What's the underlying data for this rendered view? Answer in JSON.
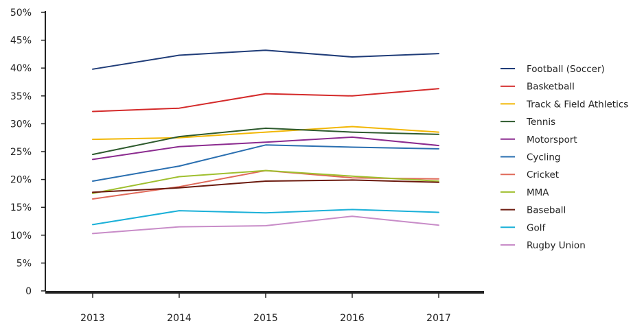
{
  "chart_data": {
    "type": "line",
    "title": "",
    "xlabel": "",
    "ylabel": "",
    "x": [
      "2013",
      "2014",
      "2015",
      "2016",
      "2017"
    ],
    "ylim": [
      0,
      50
    ],
    "y_ticks": [
      0,
      5,
      10,
      15,
      20,
      25,
      30,
      35,
      40,
      45,
      50
    ],
    "y_tick_labels": [
      "0",
      "5%",
      "10%",
      "15%",
      "20%",
      "25%",
      "30%",
      "35%",
      "40%",
      "45%",
      "50%"
    ],
    "grid": false,
    "legend_position": "right",
    "series": [
      {
        "name": "Football (Soccer)",
        "color": "#1f3c78",
        "values": [
          39.8,
          42.3,
          43.2,
          42.0,
          42.6
        ]
      },
      {
        "name": "Basketball",
        "color": "#d42a2a",
        "values": [
          32.2,
          32.8,
          35.4,
          35.0,
          36.3
        ]
      },
      {
        "name": "Track & Field Athletics",
        "color": "#f2b705",
        "values": [
          27.2,
          27.5,
          28.5,
          29.5,
          28.5
        ]
      },
      {
        "name": "Tennis",
        "color": "#2d5a2d",
        "values": [
          24.5,
          27.7,
          29.2,
          28.5,
          28.1
        ]
      },
      {
        "name": "Motorsport",
        "color": "#8b2b8f",
        "values": [
          23.6,
          25.9,
          26.7,
          27.6,
          26.1
        ]
      },
      {
        "name": "Cycling",
        "color": "#2a6fb0",
        "values": [
          19.7,
          22.4,
          26.2,
          25.8,
          25.5
        ]
      },
      {
        "name": "Cricket",
        "color": "#e06a5a",
        "values": [
          16.5,
          18.7,
          21.6,
          20.3,
          20.1
        ]
      },
      {
        "name": "MMA",
        "color": "#9fbf2e",
        "values": [
          17.5,
          20.5,
          21.6,
          20.6,
          19.7
        ]
      },
      {
        "name": "Baseball",
        "color": "#6b1a0e",
        "values": [
          17.7,
          18.5,
          19.7,
          19.9,
          19.5
        ]
      },
      {
        "name": "Golf",
        "color": "#1ab0d8",
        "values": [
          11.9,
          14.4,
          14.0,
          14.6,
          14.1
        ]
      },
      {
        "name": "Rugby Union",
        "color": "#c88cc8",
        "values": [
          10.3,
          11.5,
          11.7,
          13.4,
          11.8
        ]
      }
    ]
  }
}
